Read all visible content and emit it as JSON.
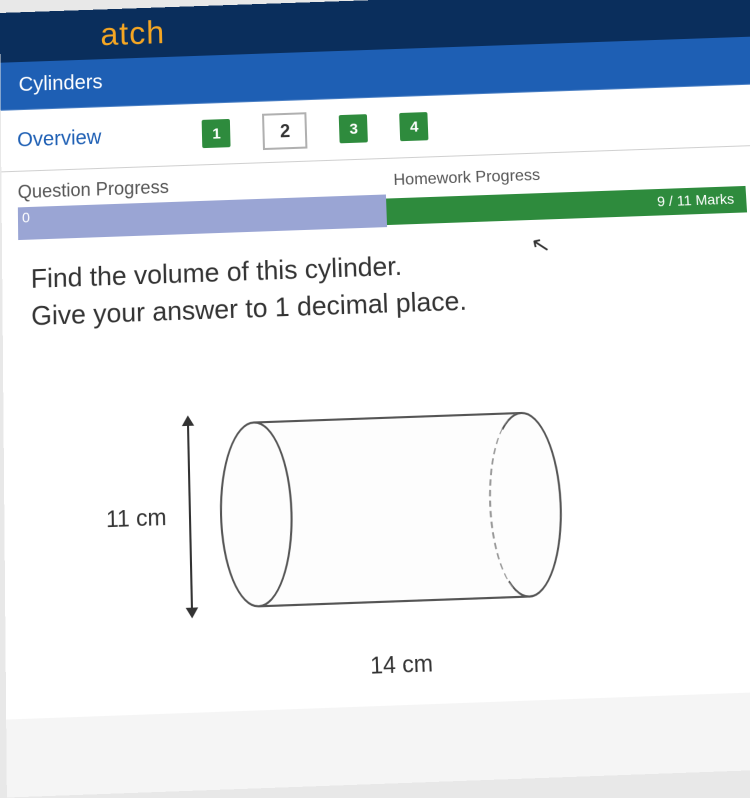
{
  "header": {
    "logo_partial": "atch"
  },
  "title_bar": {
    "title": "Cylinders"
  },
  "nav": {
    "overview_label": "Overview",
    "tabs": [
      {
        "label": "1",
        "state": "done"
      },
      {
        "label": "2",
        "state": "active"
      },
      {
        "label": "3",
        "state": "done"
      },
      {
        "label": "4",
        "state": "done"
      }
    ]
  },
  "progress": {
    "question_label": "Question Progress",
    "question_value": "0",
    "homework_label": "Homework Progress",
    "homework_marks": "9 / 11 Marks"
  },
  "question": {
    "line1": "Find the volume of this cylinder.",
    "line2": "Give your answer to 1 decimal place."
  },
  "diagram": {
    "type": "cylinder",
    "diameter_label": "11 cm",
    "length_label": "14 cm",
    "diameter_value": 11,
    "length_value": 14,
    "stroke_color": "#555555",
    "stroke_width": 2.5,
    "fill_color": "#fdfdfd"
  },
  "colors": {
    "header_bg": "#0a2e5c",
    "logo": "#f5a623",
    "title_bg": "#1e5fb4",
    "tab_done_bg": "#2e8b3d",
    "q_progress_bg": "#9aa5d4",
    "hw_progress_bg": "#2e8b3d",
    "text": "#333333",
    "link": "#1e5fb4"
  },
  "typography": {
    "title_fontsize": 20,
    "overview_fontsize": 20,
    "question_fontsize": 26,
    "dimension_fontsize": 22
  }
}
